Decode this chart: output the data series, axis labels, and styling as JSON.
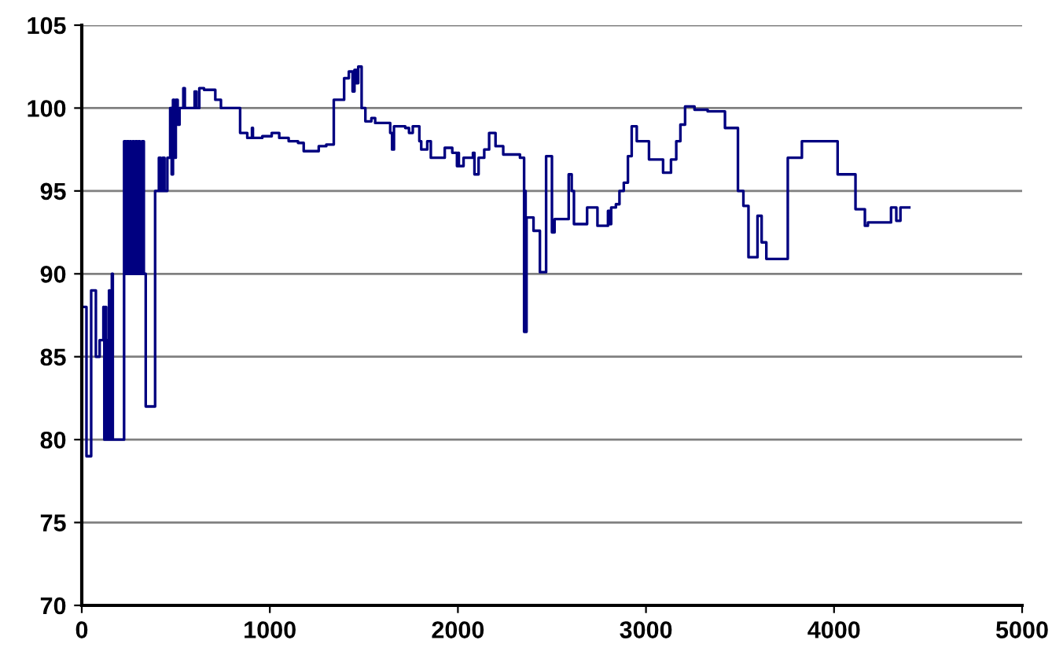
{
  "chart_data": {
    "type": "step",
    "color": "#000080",
    "x": [
      0,
      25,
      50,
      75,
      95,
      115,
      120,
      125,
      130,
      135,
      140,
      145,
      150,
      160,
      165,
      225,
      235,
      240,
      250,
      255,
      262,
      270,
      278,
      285,
      295,
      300,
      310,
      320,
      330,
      340,
      390,
      410,
      420,
      430,
      440,
      455,
      470,
      478,
      485,
      492,
      500,
      510,
      520,
      540,
      548,
      560,
      600,
      610,
      625,
      650,
      710,
      740,
      842,
      880,
      905,
      910,
      960,
      1010,
      1050,
      1100,
      1150,
      1180,
      1260,
      1300,
      1340,
      1395,
      1420,
      1440,
      1450,
      1462,
      1470,
      1488,
      1508,
      1540,
      1560,
      1640,
      1650,
      1660,
      1720,
      1740,
      1760,
      1795,
      1805,
      1837,
      1856,
      1930,
      1970,
      1995,
      2000,
      2005,
      2030,
      2080,
      2088,
      2110,
      2140,
      2166,
      2200,
      2241,
      2330,
      2352,
      2355,
      2360,
      2365,
      2402,
      2436,
      2469,
      2500,
      2514,
      2589,
      2605,
      2617,
      2687,
      2742,
      2798,
      2805,
      2815,
      2840,
      2859,
      2882,
      2904,
      2924,
      2951,
      3016,
      3091,
      3133,
      3161,
      3183,
      3208,
      3258,
      3328,
      3420,
      3489,
      3518,
      3545,
      3593,
      3615,
      3640,
      3754,
      3829,
      4019,
      4114,
      4164,
      4180,
      4303,
      4331,
      4353,
      4400
    ],
    "values": [
      88,
      79,
      89,
      85,
      86,
      88,
      80,
      88,
      80,
      86,
      80,
      89,
      80,
      90,
      80,
      98,
      90,
      98,
      90,
      98,
      90,
      98,
      90,
      98,
      90,
      98,
      90,
      98,
      90,
      82,
      95,
      97,
      95,
      97,
      95,
      97,
      100,
      96,
      100.5,
      97,
      100.5,
      99,
      100,
      101.2,
      100,
      100,
      101,
      100,
      101.2,
      101.1,
      100.5,
      100,
      98.5,
      98.2,
      98.8,
      98.2,
      98.3,
      98.5,
      98.2,
      98.0,
      97.9,
      97.4,
      97.7,
      97.8,
      100.5,
      101.8,
      102.2,
      101.0,
      102.3,
      101.5,
      102.5,
      100,
      99.2,
      99.4,
      99.1,
      98.5,
      97.5,
      98.9,
      98.8,
      98.5,
      98.9,
      98,
      97.5,
      98,
      97,
      97.6,
      97.3,
      96.5,
      97.3,
      96.5,
      97,
      97.3,
      96,
      97,
      97.5,
      98.5,
      97.7,
      97.2,
      97.0,
      86.5,
      95,
      86.5,
      93.4,
      92.6,
      90.1,
      97.1,
      92.5,
      93.3,
      96.0,
      95,
      93,
      94,
      92.9,
      93.8,
      93,
      94,
      94.2,
      95.0,
      95.5,
      97.1,
      98.9,
      98.0,
      96.9,
      96.1,
      96.9,
      98,
      99,
      100.1,
      99.9,
      99.8,
      98.8,
      95,
      94.1,
      91,
      93.5,
      91.9,
      90.9,
      97,
      98,
      96,
      93.9,
      92.9,
      93.1,
      94,
      93.2,
      94,
      94
    ],
    "xlim": [
      0,
      5000
    ],
    "xticks": [
      0,
      1000,
      2000,
      3000,
      4000,
      5000
    ],
    "ylim": [
      70,
      105
    ],
    "yticks": [
      70,
      75,
      80,
      85,
      90,
      95,
      100,
      105
    ],
    "grid": "y"
  }
}
